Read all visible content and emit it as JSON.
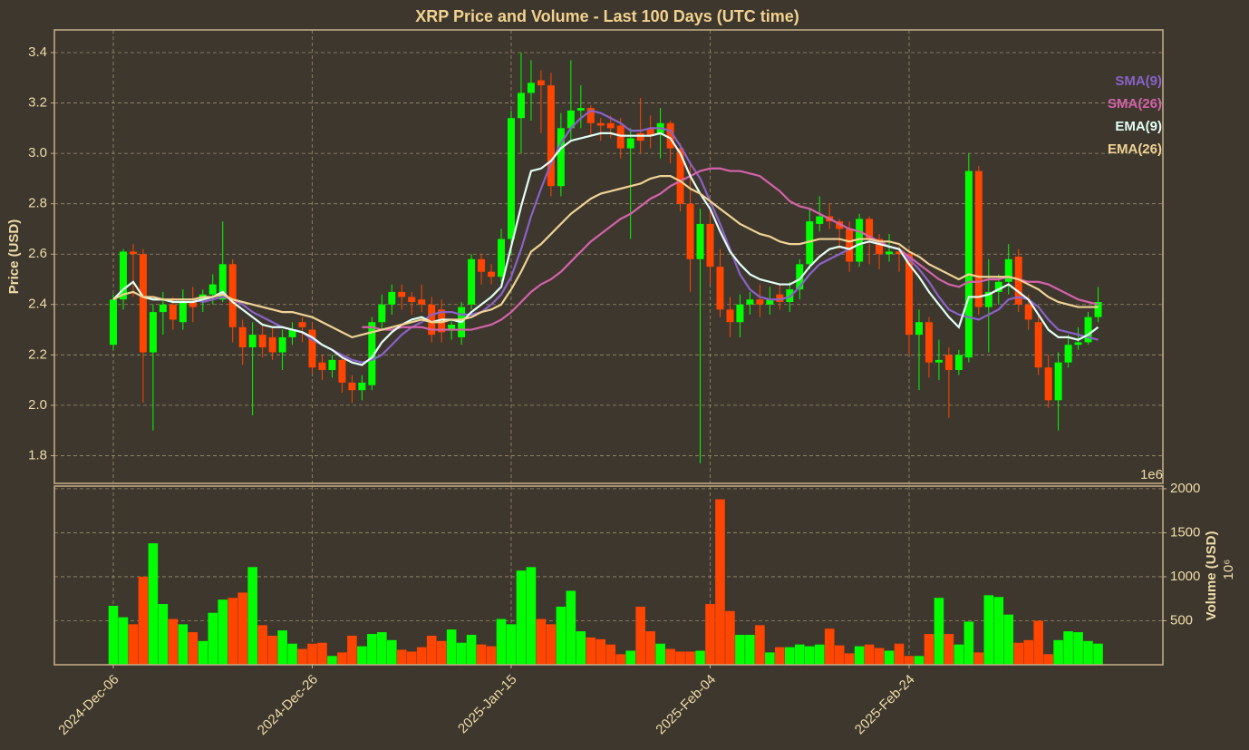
{
  "chart_data": {
    "type": "candlestick",
    "title": "XRP Price and Volume - Last 100 Days (UTC time)",
    "ylabel": "Price (USD)",
    "categories": [
      "2024-Dec-06",
      null,
      null,
      null,
      null,
      null,
      null,
      null,
      null,
      null,
      null,
      null,
      null,
      null,
      null,
      null,
      null,
      null,
      null,
      null,
      "2024-Dec-26",
      null,
      null,
      null,
      null,
      null,
      null,
      null,
      null,
      null,
      null,
      null,
      null,
      null,
      null,
      null,
      null,
      null,
      null,
      null,
      "2025-Jan-15",
      null,
      null,
      null,
      null,
      null,
      null,
      null,
      null,
      null,
      null,
      null,
      null,
      null,
      null,
      null,
      null,
      null,
      null,
      null,
      "2025-Feb-04",
      null,
      null,
      null,
      null,
      null,
      null,
      null,
      null,
      null,
      null,
      null,
      null,
      null,
      null,
      null,
      null,
      null,
      null,
      null,
      "2025-Feb-24",
      null,
      null,
      null,
      null,
      null,
      null,
      null,
      null,
      null,
      null,
      null,
      null,
      null,
      null,
      null,
      null,
      null,
      null,
      null
    ],
    "open": [
      2.24,
      2.42,
      2.61,
      2.6,
      2.21,
      2.37,
      2.4,
      2.33,
      2.41,
      2.42,
      2.44,
      2.42,
      2.56,
      2.31,
      2.23,
      2.28,
      2.27,
      2.21,
      2.27,
      2.33,
      2.3,
      2.17,
      2.14,
      2.18,
      2.09,
      2.06,
      2.08,
      2.33,
      2.4,
      2.45,
      2.43,
      2.42,
      2.4,
      2.38,
      2.3,
      2.27,
      2.4,
      2.58,
      2.53,
      2.51,
      2.66,
      3.14,
      3.24,
      3.29,
      3.27,
      2.87,
      3.1,
      3.17,
      3.18,
      3.12,
      3.12,
      3.11,
      3.02,
      3.08,
      3.1,
      3.08,
      3.12,
      3.02,
      2.8,
      2.58,
      2.72,
      2.55,
      2.38,
      2.33,
      2.4,
      2.42,
      2.4,
      2.44,
      2.41,
      2.46,
      2.56,
      2.72,
      2.75,
      2.73,
      2.7,
      2.57,
      2.74,
      2.66,
      2.6,
      2.61,
      2.6,
      2.28,
      2.33,
      2.17,
      2.2,
      2.14,
      2.19,
      2.93,
      2.39,
      2.45,
      2.49,
      2.59,
      2.4,
      2.33,
      2.15,
      2.02,
      2.17,
      2.24,
      2.25,
      2.35
    ],
    "high": [
      2.44,
      2.62,
      2.64,
      2.62,
      2.4,
      2.45,
      2.43,
      2.46,
      2.47,
      2.46,
      2.52,
      2.73,
      2.58,
      2.34,
      2.33,
      2.32,
      2.31,
      2.3,
      2.33,
      2.35,
      2.33,
      2.2,
      2.2,
      2.19,
      2.12,
      2.12,
      2.35,
      2.44,
      2.48,
      2.48,
      2.45,
      2.48,
      2.43,
      2.42,
      2.34,
      2.41,
      2.6,
      2.6,
      2.56,
      2.7,
      3.17,
      3.4,
      3.37,
      3.33,
      3.32,
      3.16,
      3.37,
      3.27,
      3.19,
      3.14,
      3.15,
      3.14,
      3.1,
      3.22,
      3.15,
      3.18,
      3.13,
      3.04,
      2.96,
      2.78,
      2.79,
      2.62,
      2.43,
      2.44,
      2.45,
      2.48,
      2.47,
      2.48,
      2.49,
      2.58,
      2.78,
      2.83,
      2.8,
      2.74,
      2.73,
      2.76,
      2.75,
      2.68,
      2.68,
      2.63,
      2.62,
      2.38,
      2.35,
      2.26,
      2.23,
      2.22,
      3.0,
      2.95,
      2.58,
      2.52,
      2.64,
      2.62,
      2.44,
      2.36,
      2.2,
      2.21,
      2.28,
      2.31,
      2.37,
      2.47
    ],
    "low": [
      2.22,
      2.38,
      2.43,
      2.01,
      1.9,
      2.28,
      2.3,
      2.3,
      2.33,
      2.37,
      2.4,
      2.41,
      2.25,
      2.16,
      1.96,
      2.19,
      2.18,
      2.14,
      2.24,
      2.25,
      2.13,
      2.1,
      2.11,
      2.05,
      2.01,
      2.02,
      2.06,
      2.3,
      2.36,
      2.38,
      2.36,
      2.37,
      2.25,
      2.25,
      2.26,
      2.24,
      2.38,
      2.48,
      2.48,
      2.49,
      2.6,
      3.0,
      3.13,
      3.08,
      2.83,
      2.83,
      3.05,
      3.1,
      3.07,
      3.05,
      3.06,
      2.98,
      2.66,
      3.0,
      3.02,
      2.98,
      2.96,
      2.77,
      2.45,
      1.77,
      2.48,
      2.35,
      2.27,
      2.27,
      2.36,
      2.35,
      2.36,
      2.38,
      2.37,
      2.42,
      2.54,
      2.69,
      2.7,
      2.62,
      2.53,
      2.55,
      2.56,
      2.54,
      2.57,
      2.53,
      2.2,
      2.06,
      2.11,
      2.1,
      1.95,
      2.12,
      2.17,
      2.36,
      2.21,
      2.4,
      2.44,
      2.37,
      2.3,
      2.12,
      1.99,
      1.9,
      2.15,
      2.22,
      2.24,
      2.33
    ],
    "close": [
      2.42,
      2.61,
      2.6,
      2.21,
      2.37,
      2.4,
      2.34,
      2.41,
      2.39,
      2.44,
      2.48,
      2.56,
      2.31,
      2.23,
      2.28,
      2.23,
      2.21,
      2.27,
      2.3,
      2.31,
      2.15,
      2.14,
      2.18,
      2.09,
      2.06,
      2.09,
      2.33,
      2.4,
      2.45,
      2.43,
      2.41,
      2.4,
      2.28,
      2.29,
      2.32,
      2.39,
      2.58,
      2.53,
      2.51,
      2.66,
      3.14,
      3.24,
      3.28,
      3.27,
      2.87,
      3.1,
      3.17,
      3.18,
      3.12,
      3.11,
      3.1,
      3.02,
      3.06,
      3.05,
      3.07,
      3.12,
      3.02,
      2.8,
      2.58,
      2.72,
      2.55,
      2.38,
      2.33,
      2.4,
      2.42,
      2.4,
      2.42,
      2.41,
      2.46,
      2.56,
      2.73,
      2.75,
      2.73,
      2.7,
      2.57,
      2.74,
      2.66,
      2.6,
      2.61,
      2.6,
      2.28,
      2.33,
      2.17,
      2.18,
      2.14,
      2.2,
      2.93,
      2.39,
      2.45,
      2.49,
      2.58,
      2.4,
      2.34,
      2.15,
      2.02,
      2.17,
      2.24,
      2.25,
      2.35,
      2.41
    ],
    "up_color": "#00ff00",
    "down_color": "#ff4500",
    "ylim": [
      1.69,
      3.49
    ],
    "yticks": [
      1.8,
      {
        "value": 2,
        "label": "2.0"
      },
      2.2,
      2.4,
      2.6,
      2.8,
      {
        "value": 3,
        "label": "3.0"
      },
      3.2,
      3.4
    ],
    "grid": true,
    "series": [
      {
        "name": "SMA(9)",
        "color": "#8a62c8",
        "values": [
          null,
          null,
          null,
          null,
          null,
          null,
          null,
          null,
          2.42,
          2.41,
          2.42,
          2.43,
          2.42,
          2.4,
          2.37,
          2.35,
          2.33,
          2.31,
          2.3,
          2.29,
          2.26,
          2.24,
          2.22,
          2.2,
          2.18,
          2.17,
          2.18,
          2.2,
          2.24,
          2.28,
          2.31,
          2.33,
          2.36,
          2.37,
          2.37,
          2.36,
          2.36,
          2.37,
          2.4,
          2.44,
          2.51,
          2.62,
          2.75,
          2.86,
          2.96,
          3.04,
          3.1,
          3.14,
          3.17,
          3.16,
          3.14,
          3.12,
          3.09,
          3.09,
          3.1,
          3.1,
          3.09,
          3.03,
          2.96,
          2.9,
          2.81,
          2.72,
          2.62,
          2.52,
          2.46,
          2.43,
          2.42,
          2.42,
          2.43,
          2.47,
          2.52,
          2.56,
          2.58,
          2.6,
          2.62,
          2.64,
          2.65,
          2.65,
          2.63,
          2.62,
          2.58,
          2.54,
          2.49,
          2.43,
          2.38,
          2.36,
          2.35,
          2.34,
          2.36,
          2.38,
          2.42,
          2.43,
          2.42,
          2.39,
          2.34,
          2.3,
          2.29,
          2.28,
          2.27,
          2.26
        ]
      },
      {
        "name": "SMA(26)",
        "color": "#d462aa",
        "values": [
          null,
          null,
          null,
          null,
          null,
          null,
          null,
          null,
          null,
          null,
          null,
          null,
          null,
          null,
          null,
          null,
          null,
          null,
          null,
          null,
          null,
          null,
          null,
          null,
          null,
          2.31,
          2.31,
          2.3,
          2.3,
          2.31,
          2.31,
          2.31,
          2.3,
          2.3,
          2.3,
          2.3,
          2.3,
          2.31,
          2.32,
          2.34,
          2.37,
          2.41,
          2.45,
          2.48,
          2.5,
          2.53,
          2.57,
          2.61,
          2.65,
          2.68,
          2.71,
          2.74,
          2.76,
          2.79,
          2.82,
          2.84,
          2.87,
          2.89,
          2.91,
          2.93,
          2.94,
          2.94,
          2.93,
          2.93,
          2.92,
          2.91,
          2.88,
          2.85,
          2.81,
          2.79,
          2.78,
          2.76,
          2.74,
          2.72,
          2.7,
          2.69,
          2.67,
          2.65,
          2.63,
          2.62,
          2.59,
          2.56,
          2.53,
          2.5,
          2.48,
          2.47,
          2.49,
          2.49,
          2.5,
          2.5,
          2.51,
          2.5,
          2.49,
          2.49,
          2.48,
          2.46,
          2.44,
          2.42,
          2.41,
          2.4
        ]
      },
      {
        "name": "EMA(9)",
        "color": "#e2fff6",
        "values": [
          2.42,
          2.46,
          2.49,
          2.43,
          2.42,
          2.42,
          2.41,
          2.41,
          2.41,
          2.42,
          2.43,
          2.45,
          2.41,
          2.38,
          2.35,
          2.32,
          2.31,
          2.31,
          2.3,
          2.29,
          2.27,
          2.24,
          2.22,
          2.19,
          2.17,
          2.16,
          2.19,
          2.25,
          2.29,
          2.32,
          2.34,
          2.35,
          2.33,
          2.34,
          2.34,
          2.33,
          2.37,
          2.4,
          2.43,
          2.47,
          2.63,
          2.79,
          2.93,
          2.94,
          2.97,
          3.02,
          3.05,
          3.06,
          3.07,
          3.08,
          3.08,
          3.07,
          3.07,
          3.07,
          3.07,
          3.08,
          3.06,
          3.0,
          2.91,
          2.84,
          2.78,
          2.69,
          2.61,
          2.56,
          2.52,
          2.5,
          2.49,
          2.48,
          2.48,
          2.5,
          2.55,
          2.59,
          2.62,
          2.63,
          2.62,
          2.64,
          2.65,
          2.64,
          2.63,
          2.62,
          2.56,
          2.51,
          2.45,
          2.4,
          2.35,
          2.31,
          2.43,
          2.43,
          2.44,
          2.46,
          2.48,
          2.45,
          2.42,
          2.36,
          2.3,
          2.27,
          2.27,
          2.26,
          2.28,
          2.31
        ]
      },
      {
        "name": "EMA(26)",
        "color": "#f0d394",
        "values": [
          2.42,
          2.44,
          2.45,
          2.43,
          2.43,
          2.42,
          2.42,
          2.42,
          2.42,
          2.43,
          2.43,
          2.44,
          2.42,
          2.41,
          2.4,
          2.39,
          2.38,
          2.37,
          2.37,
          2.36,
          2.35,
          2.33,
          2.31,
          2.29,
          2.27,
          2.28,
          2.29,
          2.3,
          2.31,
          2.32,
          2.33,
          2.34,
          2.33,
          2.33,
          2.34,
          2.34,
          2.35,
          2.37,
          2.38,
          2.4,
          2.46,
          2.53,
          2.61,
          2.64,
          2.68,
          2.72,
          2.76,
          2.79,
          2.82,
          2.84,
          2.85,
          2.86,
          2.87,
          2.88,
          2.9,
          2.91,
          2.91,
          2.89,
          2.86,
          2.84,
          2.81,
          2.78,
          2.75,
          2.72,
          2.7,
          2.68,
          2.67,
          2.65,
          2.64,
          2.64,
          2.65,
          2.66,
          2.66,
          2.66,
          2.65,
          2.66,
          2.66,
          2.65,
          2.65,
          2.64,
          2.61,
          2.59,
          2.56,
          2.54,
          2.52,
          2.5,
          2.52,
          2.51,
          2.51,
          2.51,
          2.51,
          2.5,
          2.48,
          2.46,
          2.43,
          2.41,
          2.4,
          2.39,
          2.39,
          2.39
        ]
      }
    ],
    "volume": {
      "ylabel": "Volume (USD)",
      "offset_label": "1e6",
      "scale_label": "10⁶",
      "values": [
        670,
        540,
        460,
        1000,
        1380,
        690,
        520,
        460,
        370,
        270,
        590,
        740,
        760,
        820,
        1110,
        450,
        330,
        390,
        240,
        180,
        240,
        250,
        100,
        140,
        330,
        210,
        350,
        370,
        280,
        170,
        150,
        200,
        330,
        270,
        400,
        250,
        340,
        230,
        210,
        520,
        460,
        1070,
        1110,
        520,
        460,
        660,
        840,
        380,
        310,
        290,
        230,
        120,
        160,
        660,
        380,
        240,
        180,
        150,
        150,
        160,
        690,
        1880,
        610,
        340,
        340,
        450,
        140,
        200,
        200,
        230,
        210,
        230,
        410,
        220,
        130,
        210,
        230,
        190,
        160,
        240,
        100,
        100,
        350,
        760,
        350,
        230,
        490,
        140,
        790,
        770,
        570,
        250,
        280,
        500,
        120,
        280,
        380,
        370,
        270,
        240
      ],
      "ylim": [
        0,
        2030
      ],
      "yticks": [
        500,
        1000,
        1500,
        2000
      ]
    }
  }
}
